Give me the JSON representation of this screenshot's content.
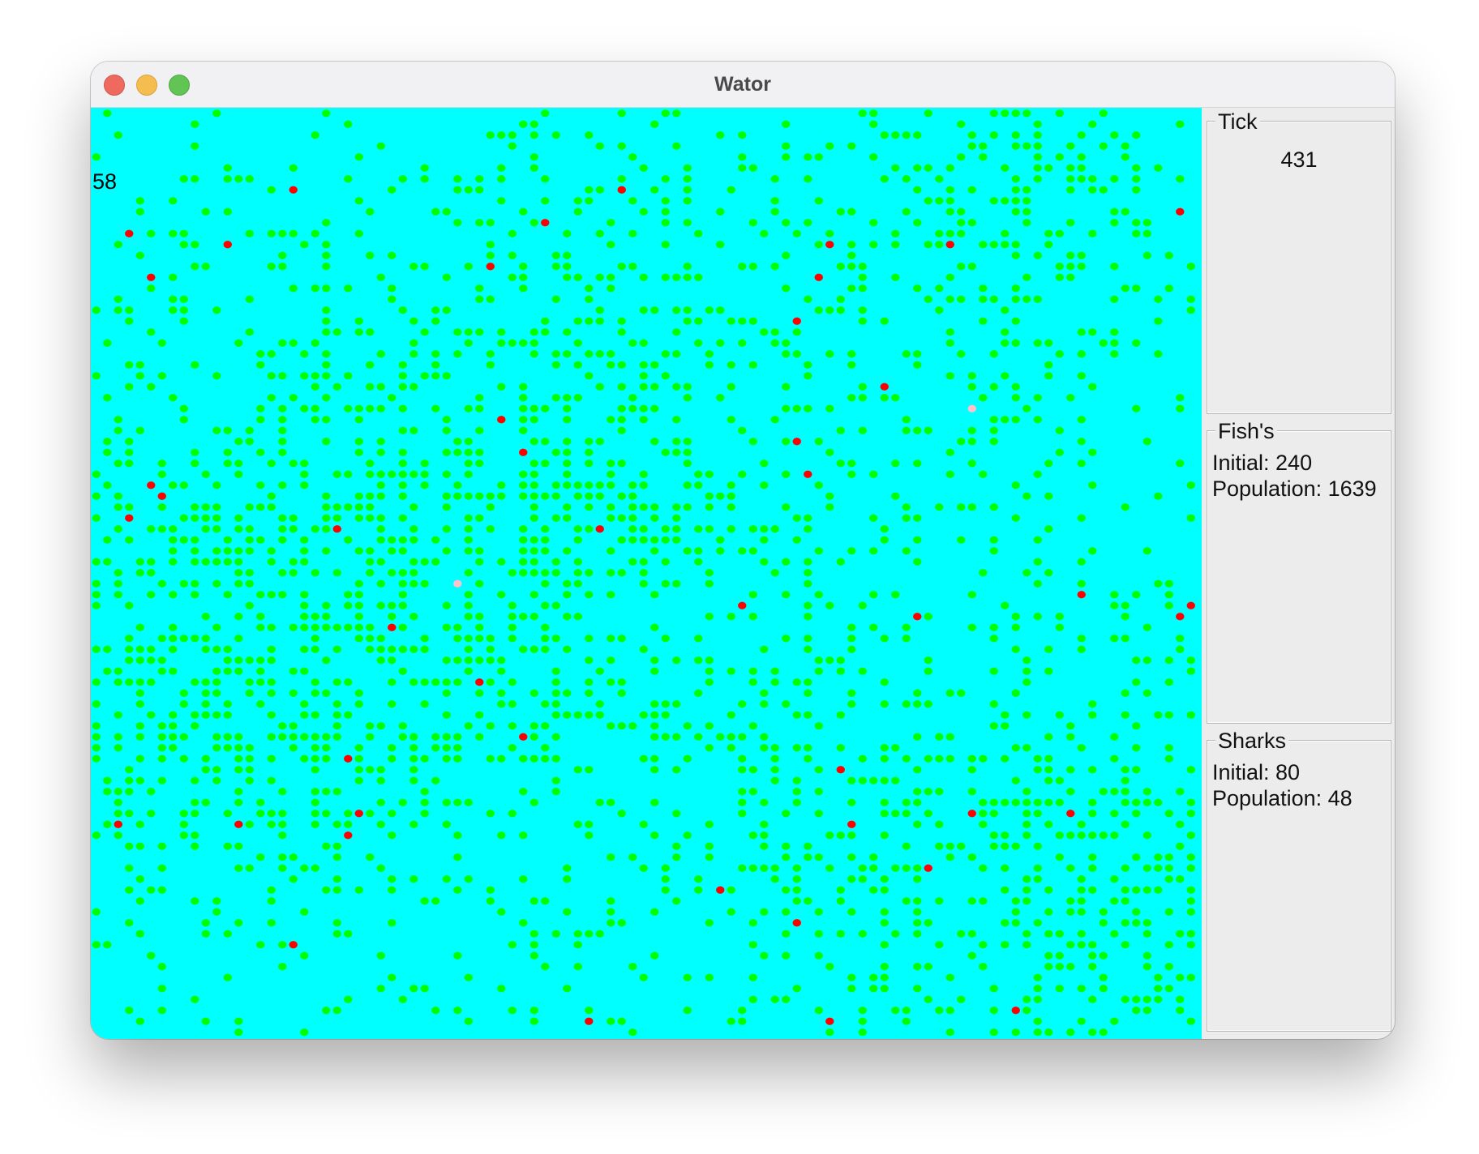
{
  "window": {
    "title": "Wator"
  },
  "ocean": {
    "background": "#00ffff",
    "fish_color": "#00ff00",
    "shark_color": "#ff0000",
    "newborn_shark_color": "#ffc0cb",
    "overlay_count": "58"
  },
  "tick": {
    "title": "Tick",
    "value": "431"
  },
  "fish": {
    "title": "Fish's",
    "initial_label": "Initial: 240",
    "population_label": "Population: 1639"
  },
  "sharks": {
    "title": "Sharks",
    "initial_label": "Initial: 80",
    "population_label": "Population: 48"
  }
}
